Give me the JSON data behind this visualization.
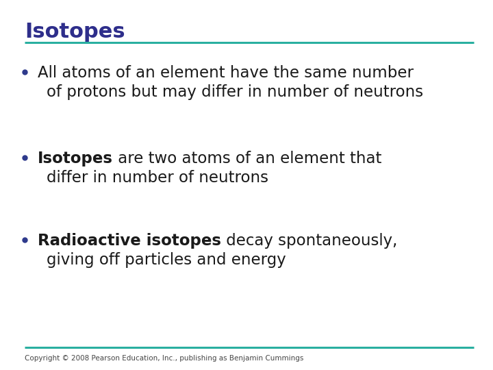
{
  "title": "Isotopes",
  "title_color": "#2E2E8B",
  "title_fontsize": 22,
  "line_color": "#2AAFA0",
  "background_color": "#FFFFFF",
  "bullet_color": "#2E3A8C",
  "text_color": "#1a1a1a",
  "text_fontsize": 16.5,
  "copyright_text": "Copyright © 2008 Pearson Education, Inc., publishing as Benjamin Cummings",
  "copyright_fontsize": 7.5,
  "copyright_color": "#444444",
  "bullets": [
    {
      "lines": [
        [
          {
            "text": "All atoms of an element have the same number",
            "bold": false
          }
        ],
        [
          {
            "text": "of protons but may differ in number of neutrons",
            "bold": false
          }
        ]
      ]
    },
    {
      "lines": [
        [
          {
            "text": "Isotopes",
            "bold": true
          },
          {
            "text": " are two atoms of an element that",
            "bold": false
          }
        ],
        [
          {
            "text": "differ in number of neutrons",
            "bold": false
          }
        ]
      ]
    },
    {
      "lines": [
        [
          {
            "text": "Radioactive isotopes",
            "bold": true
          },
          {
            "text": " decay spontaneously,",
            "bold": false
          }
        ],
        [
          {
            "text": "giving off particles and energy",
            "bold": false
          }
        ]
      ]
    }
  ]
}
